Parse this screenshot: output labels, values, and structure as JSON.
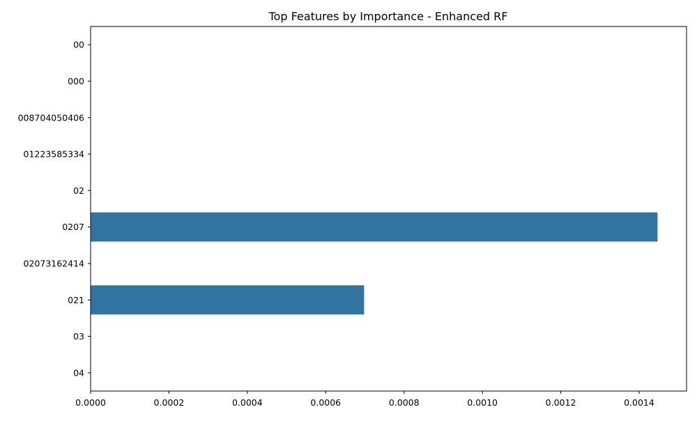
{
  "chart_data": {
    "type": "bar",
    "orientation": "horizontal",
    "title": "Top Features by Importance - Enhanced RF",
    "xlabel": "",
    "ylabel": "",
    "categories": [
      "00",
      "000",
      "008704050406",
      "01223585334",
      "02",
      "0207",
      "02073162414",
      "021",
      "03",
      "04"
    ],
    "values": [
      0,
      0,
      0,
      0,
      0,
      0.001447,
      0,
      0.000698,
      0,
      0
    ],
    "xlim": [
      0,
      0.001521
    ],
    "x_ticks": [
      0.0,
      0.0002,
      0.0004,
      0.0006,
      0.0008,
      0.001,
      0.0012,
      0.0014
    ],
    "x_tick_labels": [
      "0.0000",
      "0.0002",
      "0.0004",
      "0.0006",
      "0.0008",
      "0.0010",
      "0.0012",
      "0.0014"
    ],
    "bar_color": "#3274a1",
    "grid": false,
    "legend": null
  }
}
